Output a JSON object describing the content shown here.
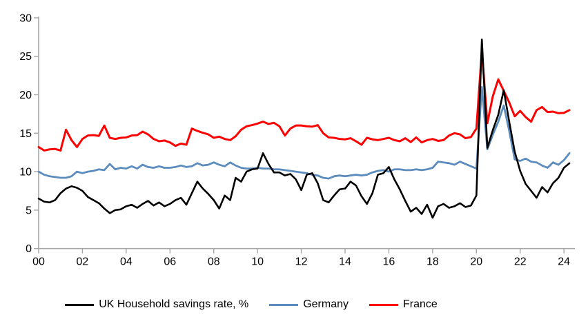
{
  "page": {
    "background": "#FFFFFF"
  },
  "chart_data": {
    "type": "line",
    "title": "",
    "x_start": 2000.0,
    "x_step": 0.25,
    "xlim": [
      2000,
      2024.5
    ],
    "ylim": [
      0,
      30
    ],
    "grid": false,
    "legend_position": "bottom",
    "axis_color": "#A6A6A6",
    "tick_label_color": "#000000",
    "yticks": {
      "positions": [
        0,
        5,
        10,
        15,
        20,
        25,
        30
      ],
      "labels": [
        "0",
        "5",
        "10",
        "15",
        "20",
        "25",
        "30"
      ]
    },
    "xticks": {
      "positions": [
        2000,
        2002,
        2004,
        2006,
        2008,
        2010,
        2012,
        2014,
        2016,
        2018,
        2020,
        2022,
        2024
      ],
      "labels": [
        "00",
        "02",
        "04",
        "06",
        "08",
        "10",
        "12",
        "14",
        "16",
        "18",
        "20",
        "22",
        "24"
      ]
    },
    "series": [
      {
        "name": "Germany",
        "color": "#5B8CBD",
        "stroke_width": 2.8,
        "values": [
          10.0,
          9.6,
          9.4,
          9.3,
          9.2,
          9.2,
          9.4,
          10.0,
          9.8,
          10.0,
          10.1,
          10.3,
          10.2,
          11.0,
          10.3,
          10.5,
          10.4,
          10.7,
          10.4,
          10.9,
          10.6,
          10.5,
          10.7,
          10.5,
          10.5,
          10.6,
          10.8,
          10.6,
          10.7,
          11.1,
          10.8,
          10.9,
          11.2,
          10.9,
          10.7,
          11.2,
          10.8,
          10.5,
          10.4,
          10.4,
          10.5,
          10.4,
          10.4,
          10.3,
          10.3,
          10.2,
          10.1,
          10.0,
          9.9,
          9.8,
          9.6,
          9.5,
          9.2,
          9.1,
          9.4,
          9.5,
          9.4,
          9.5,
          9.6,
          9.5,
          9.6,
          9.9,
          10.1,
          10.2,
          10.0,
          10.3,
          10.3,
          10.2,
          10.2,
          10.3,
          10.2,
          10.3,
          10.5,
          11.3,
          11.2,
          11.1,
          10.9,
          11.3,
          11.0,
          10.7,
          10.4,
          21.0,
          12.9,
          14.8,
          16.5,
          18.6,
          15.3,
          11.6,
          11.4,
          11.7,
          11.3,
          11.2,
          10.8,
          10.5,
          11.2,
          10.9,
          11.5,
          12.4
        ]
      },
      {
        "name": "France",
        "color": "#FE0000",
        "stroke_width": 3.0,
        "values": [
          13.2,
          12.75,
          12.9,
          12.95,
          12.75,
          15.45,
          14.1,
          13.2,
          14.25,
          14.7,
          14.75,
          14.65,
          16.0,
          14.4,
          14.25,
          14.4,
          14.45,
          14.7,
          14.75,
          15.2,
          14.85,
          14.25,
          13.95,
          14.05,
          13.8,
          13.35,
          13.65,
          13.5,
          15.6,
          15.3,
          15.05,
          14.85,
          14.4,
          14.55,
          14.25,
          14.1,
          14.6,
          15.45,
          15.9,
          16.05,
          16.25,
          16.5,
          16.2,
          16.35,
          15.9,
          14.7,
          15.6,
          16.0,
          16.0,
          15.9,
          15.85,
          16.05,
          15.0,
          14.45,
          14.4,
          14.25,
          14.2,
          14.35,
          13.95,
          13.5,
          14.4,
          14.2,
          14.1,
          14.25,
          14.4,
          14.1,
          13.95,
          14.35,
          13.85,
          14.45,
          13.8,
          14.1,
          14.25,
          14.0,
          14.1,
          14.7,
          15.0,
          14.85,
          14.35,
          14.5,
          15.6,
          25.8,
          16.3,
          19.8,
          22.0,
          20.5,
          19.0,
          17.2,
          17.9,
          17.1,
          16.5,
          18.0,
          18.4,
          17.75,
          17.8,
          17.6,
          17.65,
          18.0
        ]
      },
      {
        "name": "UK Household savings rate, %",
        "color": "#000000",
        "stroke_width": 2.6,
        "values": [
          6.5,
          6.1,
          6.0,
          6.3,
          7.2,
          7.8,
          8.1,
          7.9,
          7.5,
          6.7,
          6.3,
          5.9,
          5.2,
          4.6,
          5.0,
          5.1,
          5.5,
          5.7,
          5.3,
          5.8,
          6.2,
          5.6,
          6.0,
          5.5,
          5.8,
          6.3,
          6.6,
          5.7,
          7.2,
          8.7,
          7.8,
          7.1,
          6.3,
          5.2,
          6.9,
          6.3,
          9.2,
          8.7,
          10.0,
          10.3,
          10.4,
          12.4,
          11.0,
          9.9,
          9.9,
          9.5,
          9.7,
          9.0,
          7.6,
          9.6,
          9.8,
          8.5,
          6.3,
          6.0,
          6.9,
          7.7,
          7.8,
          8.7,
          8.2,
          6.8,
          5.8,
          7.2,
          9.6,
          9.8,
          10.6,
          9.0,
          7.7,
          6.2,
          4.8,
          5.3,
          4.5,
          5.7,
          4.0,
          5.5,
          5.8,
          5.3,
          5.5,
          5.9,
          5.4,
          5.6,
          6.9,
          27.2,
          13.1,
          15.4,
          17.4,
          20.6,
          16.5,
          12.6,
          10.1,
          8.4,
          7.5,
          6.6,
          8.0,
          7.3,
          8.5,
          9.2,
          10.5,
          11.1
        ]
      }
    ],
    "legend_order": [
      2,
      0,
      1
    ]
  }
}
